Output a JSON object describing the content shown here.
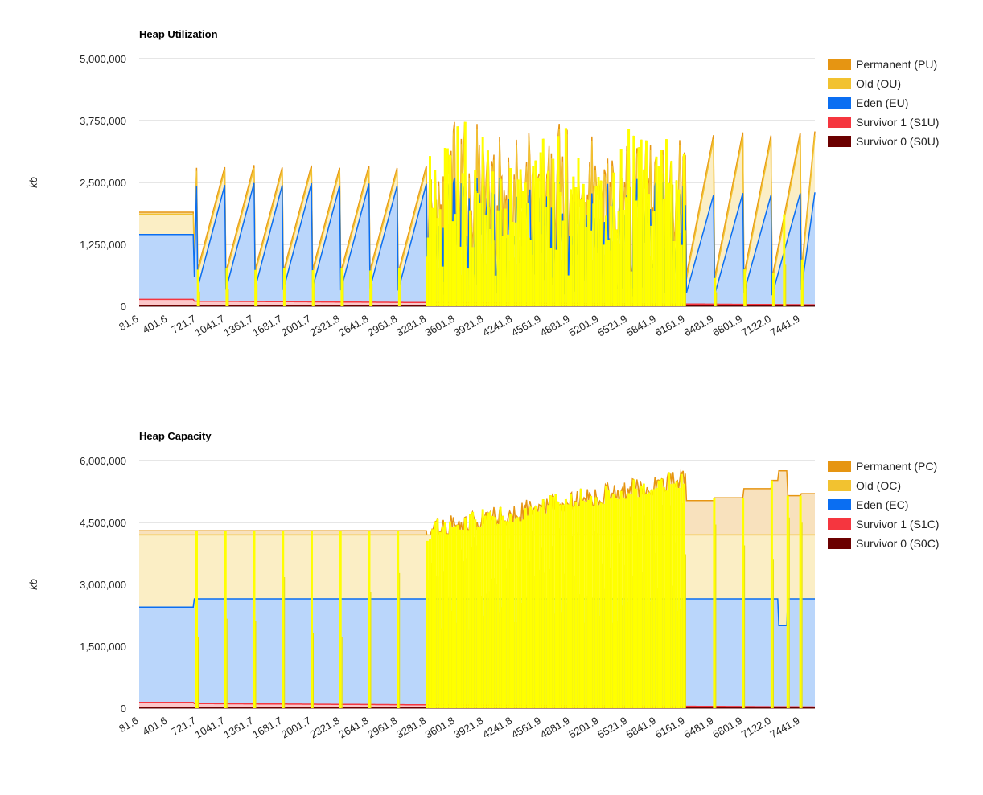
{
  "chart_data": [
    {
      "type": "area",
      "title": "Heap Utilization",
      "xlabel": "",
      "ylabel": "kb",
      "ylim": [
        0,
        5000000
      ],
      "yticks": [
        "5,000,000",
        "3,750,000",
        "2,500,000",
        "1,250,000",
        "0"
      ],
      "ytick_values": [
        5000000,
        3750000,
        2500000,
        1250000,
        0
      ],
      "xlim": [
        81.6,
        7601.9
      ],
      "xticks": [
        "81.6",
        "401.6",
        "721.7",
        "1041.7",
        "1361.7",
        "1681.7",
        "2001.7",
        "2321.8",
        "2641.8",
        "2961.8",
        "3281.8",
        "3601.8",
        "3921.8",
        "4241.8",
        "4561.9",
        "4881.9",
        "5201.9",
        "5521.9",
        "5841.9",
        "6161.9",
        "6481.9",
        "6801.9",
        "7122.0",
        "7441.9"
      ],
      "xtick_values": [
        81.6,
        401.6,
        721.7,
        1041.7,
        1361.7,
        1681.7,
        2001.7,
        2321.8,
        2641.8,
        2961.8,
        3281.8,
        3601.8,
        3921.8,
        4241.8,
        4561.9,
        4881.9,
        5201.9,
        5521.9,
        5841.9,
        6161.9,
        6481.9,
        6801.9,
        7122.0,
        7441.9
      ],
      "legend_position": "right",
      "series": [
        {
          "name": "Permanent (PU)",
          "color": "#e69512"
        },
        {
          "name": "Old (OU)",
          "color": "#f2c230"
        },
        {
          "name": "Eden (EU)",
          "color": "#0a6ef2"
        },
        {
          "name": "Survivor 1 (S1U)",
          "color": "#f5363f"
        },
        {
          "name": "Survivor 0 (S0U)",
          "color": "#6b0000"
        }
      ],
      "profile": {
        "steady_start": {
          "x": 81.6,
          "survivor1": 140000,
          "eden": 1450000,
          "old": 450000,
          "permanent": 50000,
          "until_x": 721.7
        },
        "sawtooth_peaks_x": [
          721.7,
          1041.7,
          1361.7,
          1681.7,
          2001.7,
          2321.8,
          2641.8,
          2961.8,
          3281.8
        ],
        "sawtooth_peak_total": 2800000,
        "dense_region_x": [
          3281.8,
          6161.9
        ],
        "dense_peak_total_max": 4100000,
        "late_peaks_x": [
          6481.9,
          6801.9,
          7122.0,
          7441.9,
          7601.9
        ],
        "late_peak_total": 3800000
      }
    },
    {
      "type": "area",
      "title": "Heap Capacity",
      "xlabel": "",
      "ylabel": "kb",
      "ylim": [
        0,
        6000000
      ],
      "yticks": [
        "6,000,000",
        "4,500,000",
        "3,000,000",
        "1,500,000",
        "0"
      ],
      "ytick_values": [
        6000000,
        4500000,
        3000000,
        1500000,
        0
      ],
      "xlim": [
        81.6,
        7601.9
      ],
      "xticks": [
        "81.6",
        "401.6",
        "721.7",
        "1041.7",
        "1361.7",
        "1681.7",
        "2001.7",
        "2321.8",
        "2641.8",
        "2961.8",
        "3281.8",
        "3601.8",
        "3921.8",
        "4241.8",
        "4561.9",
        "4881.9",
        "5201.9",
        "5521.9",
        "5841.9",
        "6161.9",
        "6481.9",
        "6801.9",
        "7122.0",
        "7441.9"
      ],
      "xtick_values": [
        81.6,
        401.6,
        721.7,
        1041.7,
        1361.7,
        1681.7,
        2001.7,
        2321.8,
        2641.8,
        2961.8,
        3281.8,
        3601.8,
        3921.8,
        4241.8,
        4561.9,
        4881.9,
        5201.9,
        5521.9,
        5841.9,
        6161.9,
        6481.9,
        6801.9,
        7122.0,
        7441.9
      ],
      "legend_position": "right",
      "series": [
        {
          "name": "Permanent (PC)",
          "color": "#e69512"
        },
        {
          "name": "Old (OC)",
          "color": "#f2c230"
        },
        {
          "name": "Eden (EC)",
          "color": "#0a6ef2"
        },
        {
          "name": "Survivor 1 (S1C)",
          "color": "#f5363f"
        },
        {
          "name": "Survivor 0 (S0C)",
          "color": "#6b0000"
        }
      ],
      "profile": {
        "steady_start": {
          "x": 81.6,
          "survivor1": 140000,
          "eden": 2450000,
          "old": 4200000,
          "permanent": 4300000,
          "until_x": 721.7
        },
        "eden_after": 2650000,
        "old_total": 4200000,
        "permanent_total_start": 4300000,
        "dense_region_x": [
          3281.8,
          6161.9
        ],
        "dense_peak_total_max": 5750000,
        "late_levels": [
          [
            6161.9,
            5030000
          ],
          [
            6481.9,
            5100000
          ],
          [
            6801.9,
            5320000
          ],
          [
            7122.0,
            5520000
          ],
          [
            7200.0,
            5750000
          ],
          [
            7300.0,
            5150000
          ],
          [
            7441.9,
            5200000
          ]
        ]
      }
    }
  ]
}
